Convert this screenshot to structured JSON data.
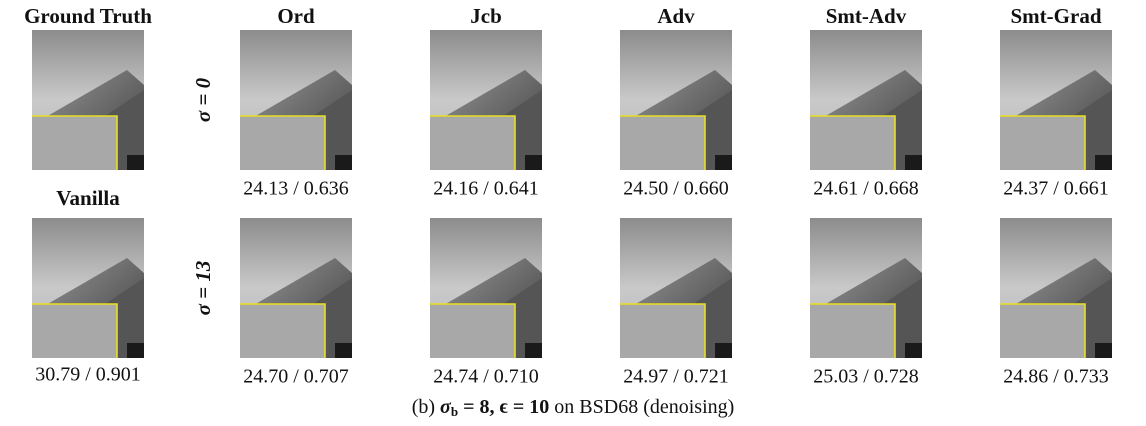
{
  "reference": {
    "ground_truth": "Ground Truth",
    "vanilla": "Vanilla",
    "vanilla_metric": "30.79 / 0.901"
  },
  "columns": [
    "Ord",
    "Jcb",
    "Adv",
    "Smt-Adv",
    "Smt-Grad"
  ],
  "rows": [
    {
      "label": "σ = 0",
      "metrics": [
        "24.13 / 0.636",
        "24.16 / 0.641",
        "24.50 / 0.660",
        "24.61 / 0.668",
        "24.37 / 0.661"
      ]
    },
    {
      "label": "σ = 13",
      "metrics": [
        "24.70 / 0.707",
        "24.74 / 0.710",
        "24.97 / 0.721",
        "25.03 / 0.728",
        "24.86 / 0.733"
      ]
    }
  ],
  "caption": {
    "prefix": "(b)",
    "sigma": "σ",
    "sub": "b",
    "math": "= 8, ϵ = 10",
    "suffix": "on BSD68 (denoising)"
  }
}
